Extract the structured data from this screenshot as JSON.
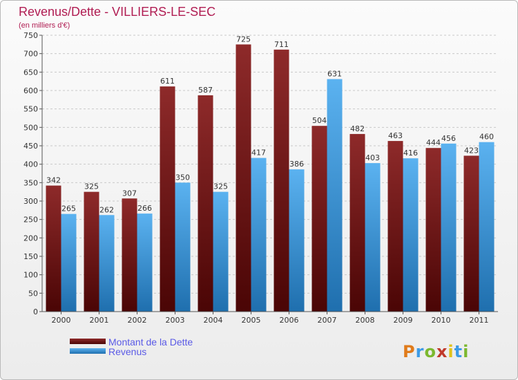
{
  "chart_data": {
    "type": "bar",
    "title": "Revenus/Dette - VILLIERS-LE-SEC",
    "subtitle": "(en milliers d'€)",
    "categories": [
      "2000",
      "2001",
      "2002",
      "2003",
      "2004",
      "2005",
      "2006",
      "2007",
      "2008",
      "2009",
      "2010",
      "2011"
    ],
    "series": [
      {
        "name": "Montant de la Dette",
        "color": "#7a1a1a",
        "values": [
          342,
          325,
          307,
          611,
          587,
          725,
          711,
          504,
          482,
          463,
          444,
          423
        ]
      },
      {
        "name": "Revenus",
        "color": "#3d9be6",
        "values": [
          265,
          262,
          266,
          350,
          325,
          417,
          386,
          631,
          403,
          416,
          456,
          460
        ]
      }
    ],
    "ylim": [
      0,
      750
    ],
    "ytick_step": 50,
    "grid": true,
    "legend_position": "bottom-left"
  },
  "brand": {
    "letters": [
      "P",
      "r",
      "o",
      "x",
      "i",
      "t",
      "i"
    ],
    "colors": [
      "#e07b1a",
      "#3d9be6",
      "#7cb82f",
      "#c0392b",
      "#e0c21a",
      "#3d9be6",
      "#7cb82f"
    ]
  }
}
